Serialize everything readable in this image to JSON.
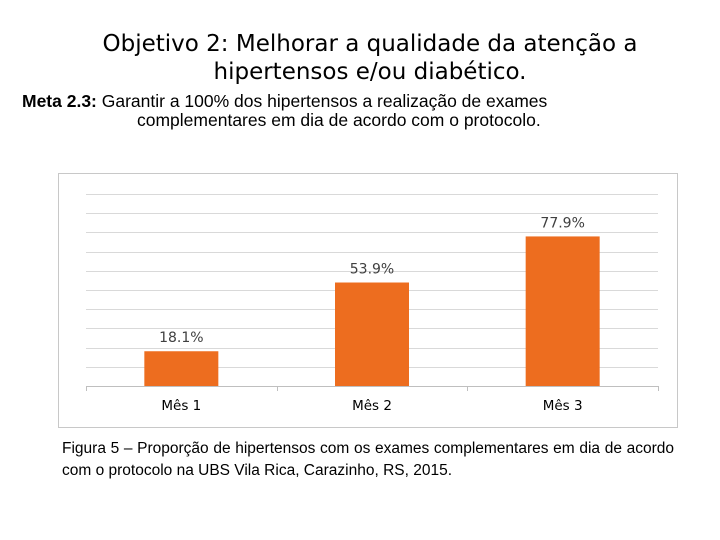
{
  "slide": {
    "title": "Objetivo 2: Melhorar a qualidade da atenção a hipertensos e/ou diabético.",
    "meta_label": "Meta 2.3:",
    "meta_text_line1": " Garantir a 100% dos hipertensos a realização de exames",
    "meta_text_line2": "complementares em dia de acordo com o protocolo.",
    "caption": "Figura 5 – Proporção de hipertensos com os exames complementares em dia de acordo com o protocolo na UBS Vila Rica, Carazinho, RS, 2015."
  },
  "chart_data": {
    "type": "bar",
    "title": "",
    "xlabel": "",
    "ylabel": "",
    "categories": [
      "Mês 1",
      "Mês 2",
      "Mês 3"
    ],
    "values": [
      18.1,
      53.9,
      77.9
    ],
    "labels": [
      "18.1%",
      "53.9%",
      "77.9%"
    ],
    "ylim": [
      0,
      100
    ],
    "gridlines": 10,
    "grid": true,
    "legend": "none",
    "bar_color": "#ED6D1F",
    "grid_color": "#D9D9D9"
  }
}
